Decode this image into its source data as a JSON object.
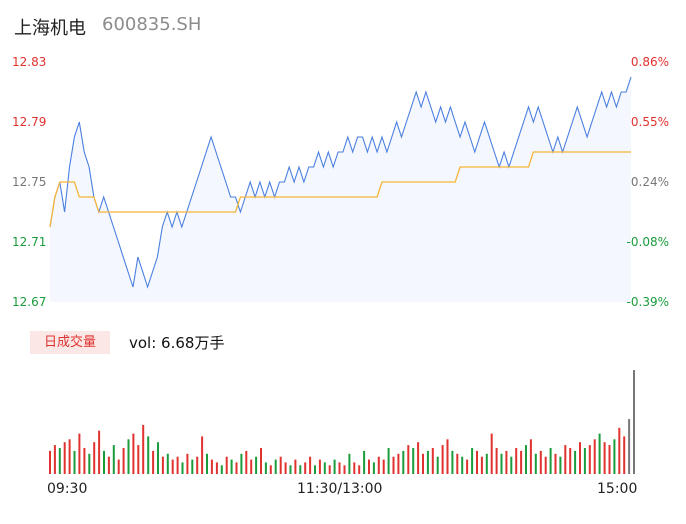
{
  "header": {
    "name": "上海机电",
    "code": "600835.SH"
  },
  "volume": {
    "tab_label": "日成交量",
    "summary": "vol: 6.68万手"
  },
  "colors": {
    "up": "#e0322f",
    "down": "#1a9c3c",
    "flat": "#777777",
    "price_line": "#4a7fe0",
    "avg_line": "#f5b53a",
    "area": "#f4f7fd"
  },
  "chart_data": {
    "type": "line",
    "ylim": [
      12.67,
      12.83
    ],
    "left_ticks": [
      "12.83",
      "12.79",
      "12.75",
      "12.71",
      "12.67"
    ],
    "right_ticks": [
      "0.86%",
      "0.55%",
      "0.24%",
      "-0.08%",
      "-0.39%"
    ],
    "x_ticks": [
      "09:30",
      "11:30/13:00",
      "15:00"
    ],
    "price": [
      12.72,
      12.74,
      12.75,
      12.73,
      12.76,
      12.78,
      12.79,
      12.77,
      12.76,
      12.74,
      12.73,
      12.74,
      12.73,
      12.72,
      12.71,
      12.7,
      12.69,
      12.68,
      12.7,
      12.69,
      12.68,
      12.69,
      12.7,
      12.72,
      12.73,
      12.72,
      12.73,
      12.72,
      12.73,
      12.74,
      12.75,
      12.76,
      12.77,
      12.78,
      12.77,
      12.76,
      12.75,
      12.74,
      12.74,
      12.73,
      12.74,
      12.75,
      12.74,
      12.75,
      12.74,
      12.75,
      12.74,
      12.75,
      12.75,
      12.76,
      12.75,
      12.76,
      12.75,
      12.76,
      12.76,
      12.77,
      12.76,
      12.77,
      12.76,
      12.77,
      12.77,
      12.78,
      12.77,
      12.78,
      12.78,
      12.77,
      12.78,
      12.77,
      12.78,
      12.77,
      12.78,
      12.79,
      12.78,
      12.79,
      12.8,
      12.81,
      12.8,
      12.81,
      12.8,
      12.79,
      12.8,
      12.79,
      12.8,
      12.79,
      12.78,
      12.79,
      12.78,
      12.77,
      12.78,
      12.79,
      12.78,
      12.77,
      12.76,
      12.77,
      12.76,
      12.77,
      12.78,
      12.79,
      12.8,
      12.79,
      12.8,
      12.79,
      12.78,
      12.77,
      12.78,
      12.77,
      12.78,
      12.79,
      12.8,
      12.79,
      12.78,
      12.79,
      12.8,
      12.81,
      12.8,
      12.81,
      12.8,
      12.81,
      12.81,
      12.82
    ],
    "avg": [
      12.72,
      12.74,
      12.75,
      12.75,
      12.75,
      12.75,
      12.74,
      12.74,
      12.74,
      12.74,
      12.73,
      12.73,
      12.73,
      12.73,
      12.73,
      12.73,
      12.73,
      12.73,
      12.73,
      12.73,
      12.73,
      12.73,
      12.73,
      12.73,
      12.73,
      12.73,
      12.73,
      12.73,
      12.73,
      12.73,
      12.73,
      12.73,
      12.73,
      12.73,
      12.73,
      12.73,
      12.73,
      12.73,
      12.73,
      12.74,
      12.74,
      12.74,
      12.74,
      12.74,
      12.74,
      12.74,
      12.74,
      12.74,
      12.74,
      12.74,
      12.74,
      12.74,
      12.74,
      12.74,
      12.74,
      12.74,
      12.74,
      12.74,
      12.74,
      12.74,
      12.74,
      12.74,
      12.74,
      12.74,
      12.74,
      12.74,
      12.74,
      12.74,
      12.75,
      12.75,
      12.75,
      12.75,
      12.75,
      12.75,
      12.75,
      12.75,
      12.75,
      12.75,
      12.75,
      12.75,
      12.75,
      12.75,
      12.75,
      12.75,
      12.76,
      12.76,
      12.76,
      12.76,
      12.76,
      12.76,
      12.76,
      12.76,
      12.76,
      12.76,
      12.76,
      12.76,
      12.76,
      12.76,
      12.76,
      12.77,
      12.77,
      12.77,
      12.77,
      12.77,
      12.77,
      12.77,
      12.77,
      12.77,
      12.77,
      12.77,
      12.77,
      12.77,
      12.77,
      12.77,
      12.77,
      12.77,
      12.77,
      12.77,
      12.77,
      12.77
    ],
    "volumes": [
      8,
      10,
      9,
      11,
      12,
      8,
      14,
      9,
      7,
      11,
      15,
      8,
      6,
      10,
      5,
      9,
      12,
      14,
      10,
      17,
      13,
      8,
      11,
      6,
      7,
      5,
      6,
      4,
      7,
      5,
      6,
      13,
      7,
      5,
      4,
      3,
      6,
      5,
      4,
      7,
      8,
      5,
      6,
      9,
      4,
      3,
      5,
      6,
      4,
      3,
      5,
      3,
      4,
      6,
      3,
      5,
      4,
      3,
      5,
      4,
      3,
      7,
      4,
      3,
      8,
      5,
      4,
      6,
      5,
      9,
      6,
      7,
      8,
      10,
      9,
      11,
      7,
      8,
      9,
      6,
      10,
      12,
      8,
      7,
      6,
      5,
      9,
      8,
      6,
      7,
      14,
      9,
      7,
      8,
      6,
      9,
      8,
      10,
      12,
      7,
      8,
      6,
      9,
      7,
      6,
      10,
      9,
      8,
      11,
      9,
      10,
      12,
      14,
      11,
      10,
      12,
      16,
      13,
      19,
      36
    ],
    "volume_dirs": [
      1,
      1,
      -1,
      1,
      1,
      -1,
      1,
      1,
      -1,
      1,
      1,
      -1,
      1,
      -1,
      1,
      1,
      -1,
      1,
      1,
      1,
      -1,
      1,
      -1,
      1,
      -1,
      1,
      1,
      -1,
      1,
      -1,
      1,
      1,
      -1,
      1,
      1,
      -1,
      1,
      -1,
      1,
      -1,
      1,
      1,
      -1,
      1,
      -1,
      1,
      -1,
      1,
      1,
      -1,
      1,
      -1,
      1,
      1,
      -1,
      1,
      -1,
      1,
      -1,
      1,
      1,
      -1,
      1,
      1,
      -1,
      1,
      -1,
      1,
      1,
      -1,
      1,
      1,
      -1,
      1,
      -1,
      1,
      1,
      -1,
      1,
      -1,
      1,
      1,
      -1,
      1,
      -1,
      1,
      -1,
      1,
      1,
      -1,
      1,
      1,
      -1,
      1,
      -1,
      1,
      1,
      -1,
      1,
      -1,
      1,
      1,
      -1,
      1,
      -1,
      1,
      1,
      -1,
      1,
      -1,
      1,
      1,
      -1,
      1,
      1,
      -1,
      1,
      1
    ]
  }
}
